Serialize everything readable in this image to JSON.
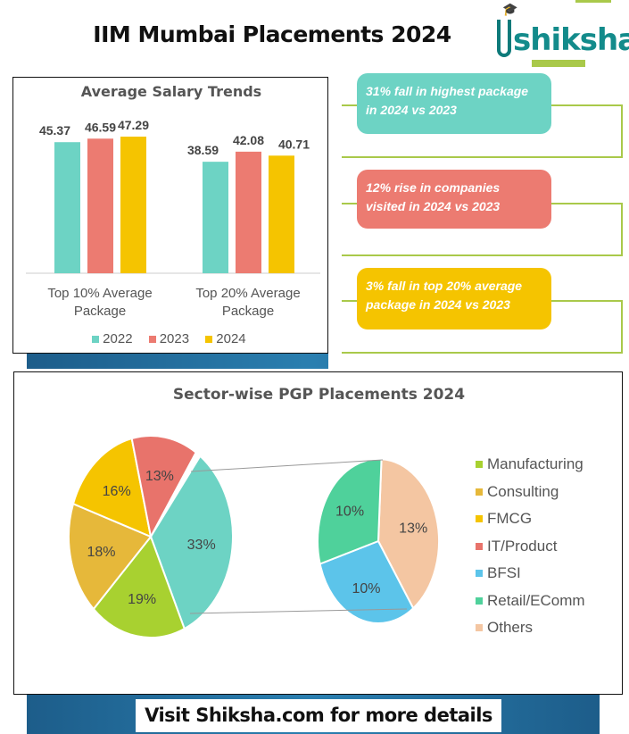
{
  "header": {
    "title": "IIM Mumbai Placements 2024",
    "logo_text": "shiksha"
  },
  "highlights": [
    {
      "text": "31% fall in highest package in 2024 vs 2023",
      "color": "#6dd3c4"
    },
    {
      "text": "12% rise in companies visited in 2024 vs 2023",
      "color": "#ec7b71"
    },
    {
      "text": "3% fall in top 20% average package in 2024 vs 2023",
      "color": "#f5c400"
    }
  ],
  "footer": {
    "text": "Visit Shiksha.com for more details"
  },
  "chart_data": [
    {
      "type": "bar",
      "title": "Average Salary Trends",
      "categories": [
        "Top 10% Average Package",
        "Top 20% Average Package"
      ],
      "series": [
        {
          "name": "2022",
          "values": [
            45.37,
            38.59
          ],
          "color": "#6dd3c4"
        },
        {
          "name": "2023",
          "values": [
            46.59,
            42.08
          ],
          "color": "#ec7b71"
        },
        {
          "name": "2024",
          "values": [
            47.29,
            40.71
          ],
          "color": "#f5c400"
        }
      ],
      "ylim": [
        0,
        50
      ],
      "legend": "bottom",
      "grid": false
    },
    {
      "type": "pie",
      "subtype": "pie-of-pie",
      "title": "Sector-wise PGP Placements 2024",
      "main": [
        {
          "label": "Manufacturing",
          "value": 19,
          "color": "#a8d130"
        },
        {
          "label": "Consulting",
          "value": 18,
          "color": "#e6b83a"
        },
        {
          "label": "FMCG",
          "value": 16,
          "color": "#f5c400"
        },
        {
          "label": "IT/Product",
          "value": 13,
          "color": "#e8736b"
        },
        {
          "label": "Other",
          "value": 33,
          "color": "#6dd3c4"
        }
      ],
      "secondary": [
        {
          "label": "Others",
          "value": 13,
          "color": "#f4c6a2"
        },
        {
          "label": "BFSI",
          "value": 10,
          "color": "#5cc4ea"
        },
        {
          "label": "Retail/EComm",
          "value": 10,
          "color": "#4fd19b"
        }
      ],
      "legend_items": [
        {
          "label": "Manufacturing",
          "color": "#a8d130"
        },
        {
          "label": "Consulting",
          "color": "#e6b83a"
        },
        {
          "label": "FMCG",
          "color": "#f5c400"
        },
        {
          "label": "IT/Product",
          "color": "#e8736b"
        },
        {
          "label": "BFSI",
          "color": "#5cc4ea"
        },
        {
          "label": "Retail/EComm",
          "color": "#4fd19b"
        },
        {
          "label": "Others",
          "color": "#f4c6a2"
        }
      ],
      "legend": "right"
    }
  ]
}
